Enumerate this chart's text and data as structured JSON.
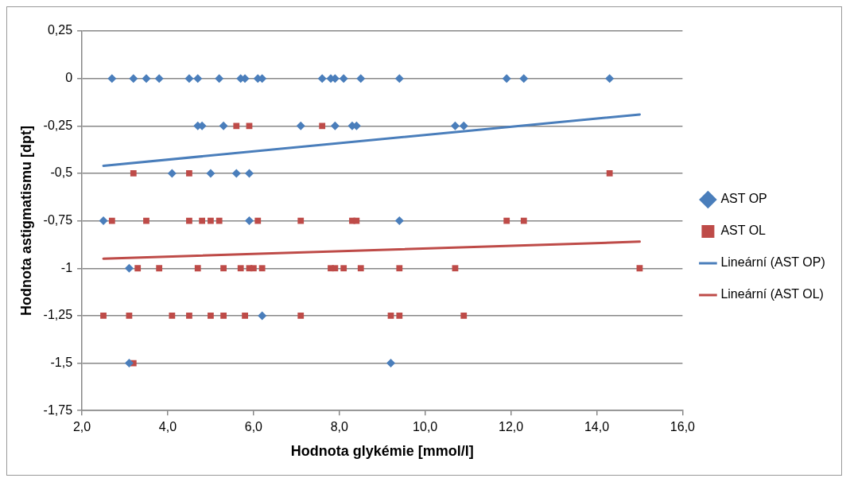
{
  "chart_data": {
    "type": "scatter",
    "xlabel": "Hodnota glykémie [mmol/l]",
    "ylabel": "Hodnota astigmatismu [dpt]",
    "xlim": [
      2,
      16
    ],
    "xticks": [
      {
        "value": 2,
        "label": "2,0"
      },
      {
        "value": 4,
        "label": "4,0"
      },
      {
        "value": 6,
        "label": "6,0"
      },
      {
        "value": 8,
        "label": "8,0"
      },
      {
        "value": 10,
        "label": "10,0"
      },
      {
        "value": 12,
        "label": "12,0"
      },
      {
        "value": 14,
        "label": "14,0"
      },
      {
        "value": 16,
        "label": "16,0"
      }
    ],
    "ylim": [
      -1.75,
      0.25
    ],
    "yticks": [
      {
        "value": -1.75,
        "label": "-1,75"
      },
      {
        "value": -1.5,
        "label": "-1,5"
      },
      {
        "value": -1.25,
        "label": "-1,25"
      },
      {
        "value": -1,
        "label": "-1"
      },
      {
        "value": -0.75,
        "label": "-0,75"
      },
      {
        "value": -0.5,
        "label": "-0,5"
      },
      {
        "value": -0.25,
        "label": "-0,25"
      },
      0,
      {
        "value": 0.25,
        "label": "0,25"
      }
    ],
    "grid": "y",
    "legend": "right",
    "series": [
      {
        "name": "AST OP",
        "type": "scatter",
        "marker": "diamond",
        "color": "#4a7ebb",
        "x": [
          2.7,
          3.2,
          3.5,
          3.8,
          4.5,
          4.7,
          5.2,
          5.7,
          5.8,
          6.1,
          6.2,
          7.6,
          7.8,
          7.9,
          8.1,
          8.5,
          9.4,
          11.9,
          12.3,
          14.3,
          4.7,
          4.8,
          5.3,
          7.1,
          7.9,
          8.3,
          8.4,
          10.7,
          10.9,
          4.1,
          5.0,
          5.6,
          5.9,
          2.5,
          5.9,
          9.4,
          3.1,
          6.2,
          3.1,
          9.2
        ],
        "values": [
          0,
          0,
          0,
          0,
          0,
          0,
          0,
          0,
          0,
          0,
          0,
          0,
          0,
          0,
          0,
          0,
          0,
          0,
          0,
          0,
          -0.25,
          -0.25,
          -0.25,
          -0.25,
          -0.25,
          -0.25,
          -0.25,
          -0.25,
          -0.25,
          -0.5,
          -0.5,
          -0.5,
          -0.5,
          -0.75,
          -0.75,
          -0.75,
          -1,
          -1.25,
          -1.5,
          -1.5
        ]
      },
      {
        "name": "AST OL",
        "type": "scatter",
        "marker": "square",
        "color": "#be4b48",
        "x": [
          5.6,
          5.9,
          7.6,
          3.2,
          4.5,
          14.3,
          2.7,
          3.5,
          4.5,
          4.8,
          5.0,
          5.2,
          6.1,
          7.1,
          8.3,
          8.4,
          11.9,
          12.3,
          3.3,
          3.8,
          4.7,
          5.3,
          5.7,
          5.9,
          6.0,
          6.2,
          7.8,
          7.9,
          8.1,
          8.5,
          9.4,
          10.7,
          15.0,
          2.5,
          3.1,
          4.1,
          4.5,
          5.0,
          5.3,
          5.8,
          7.1,
          9.2,
          9.4,
          10.9,
          3.2
        ],
        "values": [
          -0.25,
          -0.25,
          -0.25,
          -0.5,
          -0.5,
          -0.5,
          -0.75,
          -0.75,
          -0.75,
          -0.75,
          -0.75,
          -0.75,
          -0.75,
          -0.75,
          -0.75,
          -0.75,
          -0.75,
          -0.75,
          -1,
          -1,
          -1,
          -1,
          -1,
          -1,
          -1,
          -1,
          -1,
          -1,
          -1,
          -1,
          -1,
          -1,
          -1,
          -1.25,
          -1.25,
          -1.25,
          -1.25,
          -1.25,
          -1.25,
          -1.25,
          -1.25,
          -1.25,
          -1.25,
          -1.25,
          -1.5
        ]
      },
      {
        "name": "Lineární (AST OP)",
        "type": "line",
        "marker": "none",
        "line_style": "solid",
        "color": "#4a7ebb",
        "x": [
          2.5,
          15.0
        ],
        "values": [
          -0.46,
          -0.19
        ]
      },
      {
        "name": "Lineární (AST OL)",
        "type": "line",
        "marker": "none",
        "line_style": "solid",
        "color": "#be4b48",
        "x": [
          2.5,
          15.0
        ],
        "values": [
          -0.95,
          -0.86
        ]
      }
    ]
  }
}
